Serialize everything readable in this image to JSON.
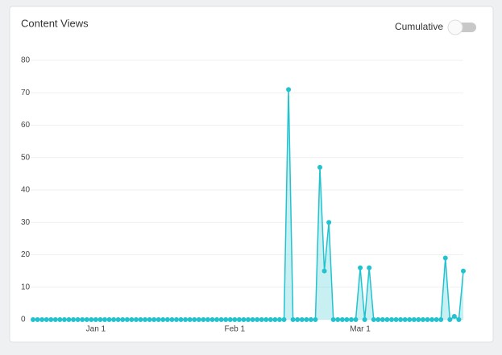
{
  "chart_data": {
    "type": "line",
    "title": "Content Views",
    "toggle_label": "Cumulative",
    "cumulative": false,
    "categories": [
      null,
      null,
      null,
      null,
      null,
      null,
      null,
      null,
      null,
      null,
      null,
      null,
      null,
      null,
      "Jan 1",
      null,
      null,
      null,
      null,
      null,
      null,
      null,
      null,
      null,
      null,
      null,
      null,
      null,
      null,
      null,
      null,
      null,
      null,
      null,
      null,
      null,
      null,
      null,
      null,
      null,
      null,
      null,
      null,
      null,
      null,
      "Feb 1",
      null,
      null,
      null,
      null,
      null,
      null,
      null,
      null,
      null,
      null,
      null,
      null,
      null,
      null,
      null,
      null,
      null,
      null,
      null,
      null,
      null,
      null,
      null,
      null,
      null,
      null,
      null,
      "Mar 1",
      null,
      null,
      null,
      null,
      null,
      null,
      null,
      null,
      null,
      null,
      null,
      null,
      null,
      null,
      null,
      null,
      null,
      null,
      null,
      null,
      null,
      null,
      null
    ],
    "values": [
      0,
      0,
      0,
      0,
      0,
      0,
      0,
      0,
      0,
      0,
      0,
      0,
      0,
      0,
      0,
      0,
      0,
      0,
      0,
      0,
      0,
      0,
      0,
      0,
      0,
      0,
      0,
      0,
      0,
      0,
      0,
      0,
      0,
      0,
      0,
      0,
      0,
      0,
      0,
      0,
      0,
      0,
      0,
      0,
      0,
      0,
      0,
      0,
      0,
      0,
      0,
      0,
      0,
      0,
      0,
      0,
      0,
      71,
      0,
      0,
      0,
      0,
      0,
      0,
      47,
      15,
      30,
      0,
      0,
      0,
      0,
      0,
      0,
      16,
      0,
      16,
      0,
      0,
      0,
      0,
      0,
      0,
      0,
      0,
      0,
      0,
      0,
      0,
      0,
      0,
      0,
      0,
      19,
      0,
      1,
      0,
      15
    ],
    "color": "#22c3cf",
    "ylim": [
      0,
      80
    ],
    "yticks": [
      0,
      10,
      20,
      30,
      40,
      50,
      60,
      70,
      80
    ],
    "grid": true
  }
}
